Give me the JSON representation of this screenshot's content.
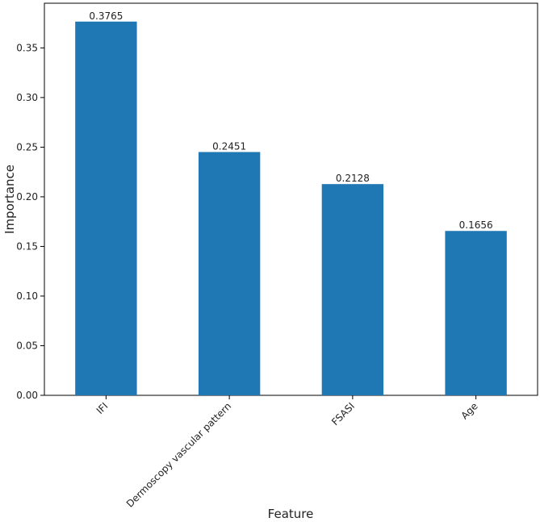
{
  "chart_data": {
    "type": "bar",
    "categories": [
      "IFI",
      "Dermoscopy vascular pattern",
      "FSASI",
      "Age"
    ],
    "values": [
      0.3765,
      0.2451,
      0.2128,
      0.1656
    ],
    "data_labels": [
      "0.3765",
      "0.2451",
      "0.2128",
      "0.1656"
    ],
    "title": "",
    "xlabel": "Feature",
    "ylabel": "Importance",
    "ylim": [
      0,
      0.395
    ],
    "yticks": [
      0.0,
      0.05,
      0.1,
      0.15,
      0.2,
      0.25,
      0.3,
      0.35
    ],
    "ytick_labels": [
      "0.00",
      "0.05",
      "0.10",
      "0.15",
      "0.20",
      "0.25",
      "0.30",
      "0.35"
    ],
    "bar_color": "#1f77b4",
    "grid": false,
    "legend": "none"
  }
}
